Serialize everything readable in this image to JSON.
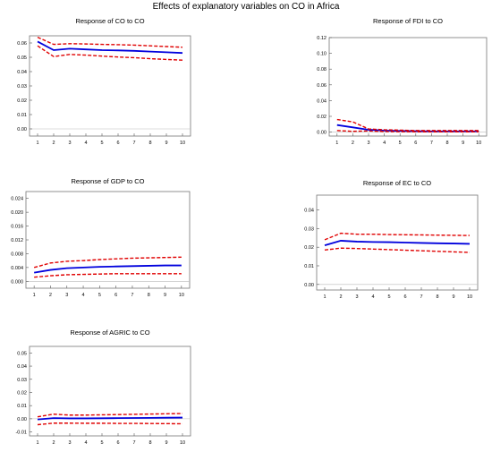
{
  "title": "Effects of explanatory variables on CO in Africa",
  "colors": {
    "response": "#0000dd",
    "band": "#e00000",
    "frame": "#777777",
    "zero": "#bbbbbb"
  },
  "chart_data": [
    {
      "type": "line",
      "title": "Response of CO to CO",
      "x": [
        1,
        2,
        3,
        4,
        5,
        6,
        7,
        8,
        9,
        10
      ],
      "ylim": [
        -0.005,
        0.065
      ],
      "yticks": [
        "0.00",
        "0.01",
        "0.02",
        "0.03",
        "0.04",
        "0.05",
        "0.06"
      ],
      "ytick_values": [
        0.0,
        0.01,
        0.02,
        0.03,
        0.04,
        0.05,
        0.06
      ],
      "series": [
        {
          "role": "response",
          "values": [
            0.061,
            0.055,
            0.056,
            0.0555,
            0.055,
            0.0548,
            0.0545,
            0.054,
            0.0535,
            0.053
          ]
        },
        {
          "role": "upper",
          "values": [
            0.064,
            0.059,
            0.0595,
            0.0593,
            0.059,
            0.0588,
            0.0585,
            0.058,
            0.0575,
            0.057
          ]
        },
        {
          "role": "lower",
          "values": [
            0.058,
            0.0505,
            0.052,
            0.0515,
            0.0508,
            0.0502,
            0.0497,
            0.049,
            0.0485,
            0.048
          ]
        }
      ]
    },
    {
      "type": "line",
      "title": "Response of FDI to CO",
      "x": [
        1,
        2,
        3,
        4,
        5,
        6,
        7,
        8,
        9,
        10
      ],
      "ylim": [
        -0.005,
        0.12
      ],
      "yticks": [
        "0.00",
        "0.02",
        "0.04",
        "0.06",
        "0.08",
        "0.10",
        "0.12"
      ],
      "ytick_values": [
        0.0,
        0.02,
        0.04,
        0.06,
        0.08,
        0.1,
        0.12
      ],
      "series": [
        {
          "role": "response",
          "values": [
            0.009,
            0.006,
            0.003,
            0.002,
            0.0015,
            0.0012,
            0.001,
            0.001,
            0.001,
            0.001
          ]
        },
        {
          "role": "upper",
          "values": [
            0.016,
            0.013,
            0.004,
            0.003,
            0.0025,
            0.002,
            0.002,
            0.002,
            0.002,
            0.002
          ]
        },
        {
          "role": "lower",
          "values": [
            0.002,
            0.001,
            0.0015,
            0.0008,
            0.0005,
            0.0004,
            0.0003,
            0.0003,
            0.0003,
            0.0003
          ]
        }
      ]
    },
    {
      "type": "line",
      "title": "Response of GDP to CO",
      "x": [
        1,
        2,
        3,
        4,
        5,
        6,
        7,
        8,
        9,
        10
      ],
      "ylim": [
        -0.002,
        0.026
      ],
      "yticks": [
        "0.000",
        "0.004",
        "0.008",
        "0.012",
        "0.016",
        "0.020",
        "0.024"
      ],
      "ytick_values": [
        0.0,
        0.004,
        0.008,
        0.012,
        0.016,
        0.02,
        0.024
      ],
      "series": [
        {
          "role": "response",
          "values": [
            0.0025,
            0.0033,
            0.0038,
            0.004,
            0.0042,
            0.0043,
            0.0044,
            0.0045,
            0.0046,
            0.0046
          ]
        },
        {
          "role": "upper",
          "values": [
            0.004,
            0.0053,
            0.0058,
            0.006,
            0.0063,
            0.0065,
            0.0067,
            0.0068,
            0.0069,
            0.007
          ]
        },
        {
          "role": "lower",
          "values": [
            0.0012,
            0.0016,
            0.0019,
            0.002,
            0.0021,
            0.0022,
            0.0022,
            0.0022,
            0.0022,
            0.0022
          ]
        }
      ]
    },
    {
      "type": "line",
      "title": "Response of EC to CO",
      "x": [
        1,
        2,
        3,
        4,
        5,
        6,
        7,
        8,
        9,
        10
      ],
      "ylim": [
        -0.003,
        0.048
      ],
      "yticks": [
        "0.00",
        "0.01",
        "0.02",
        "0.03",
        "0.04"
      ],
      "ytick_values": [
        0.0,
        0.01,
        0.02,
        0.03,
        0.04
      ],
      "series": [
        {
          "role": "response",
          "values": [
            0.021,
            0.0235,
            0.023,
            0.0228,
            0.0227,
            0.0225,
            0.0223,
            0.0221,
            0.022,
            0.0218
          ]
        },
        {
          "role": "upper",
          "values": [
            0.024,
            0.0275,
            0.027,
            0.027,
            0.0268,
            0.0267,
            0.0266,
            0.0265,
            0.0264,
            0.0263
          ]
        },
        {
          "role": "lower",
          "values": [
            0.0185,
            0.0195,
            0.0193,
            0.019,
            0.0187,
            0.0184,
            0.0181,
            0.0178,
            0.0175,
            0.0172
          ]
        }
      ]
    },
    {
      "type": "line",
      "title": "Response of AGRIC to CO",
      "x": [
        1,
        2,
        3,
        4,
        5,
        6,
        7,
        8,
        9,
        10
      ],
      "ylim": [
        -0.013,
        0.055
      ],
      "yticks": [
        "-0.01",
        "0.00",
        "0.01",
        "0.02",
        "0.03",
        "0.04",
        "0.05"
      ],
      "ytick_values": [
        -0.01,
        0.0,
        0.01,
        0.02,
        0.03,
        0.04,
        0.05
      ],
      "series": [
        {
          "role": "response",
          "values": [
            -0.0005,
            0.0005,
            0.0003,
            0.0003,
            0.0004,
            0.0005,
            0.0006,
            0.0007,
            0.0008,
            0.0009
          ]
        },
        {
          "role": "upper",
          "values": [
            0.0015,
            0.0035,
            0.0028,
            0.0028,
            0.003,
            0.0032,
            0.0034,
            0.0036,
            0.0038,
            0.004
          ]
        },
        {
          "role": "lower",
          "values": [
            -0.0045,
            -0.0033,
            -0.0033,
            -0.0034,
            -0.0034,
            -0.0035,
            -0.0035,
            -0.0036,
            -0.0037,
            -0.0038
          ]
        }
      ]
    }
  ]
}
